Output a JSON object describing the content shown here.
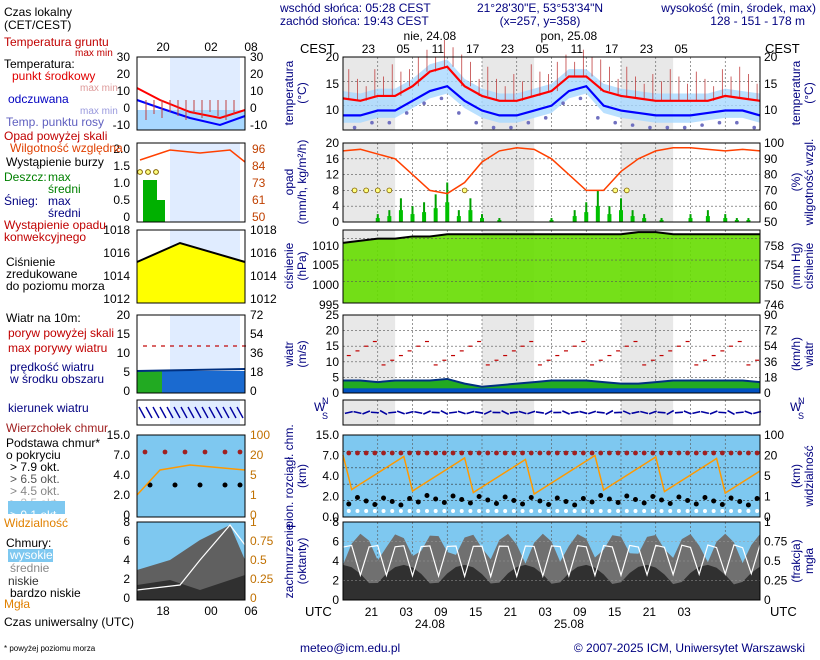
{
  "header": {
    "sunrise": "wschód słońca: 05:28 CEST",
    "sunset": "zachód słońca: 19:43 CEST",
    "coords": "21°28'30\"E, 53°53'34\"N",
    "grid": "(x=257, y=358)",
    "elev_label": "wysokość (min, środek, max)",
    "elev_values": "128 - 151 - 178 m",
    "tz_local": "CEST",
    "days": [
      "nie, 24.08",
      "pon, 25.08"
    ],
    "local_hours": [
      "23",
      "05",
      "11",
      "17",
      "23",
      "05",
      "11",
      "17",
      "23",
      "05"
    ]
  },
  "footer": {
    "utc": "UTC",
    "utc_hours": [
      "21",
      "03",
      "09",
      "15",
      "21",
      "03",
      "09",
      "15",
      "21",
      "03"
    ],
    "dates": [
      "24.08",
      "25.08"
    ],
    "email": "meteo@icm.edu.pl",
    "copyright": "© 2007-2025 ICM, Uniwersytet Warszawski",
    "note": "* powyżej poziomu morza"
  },
  "legend": {
    "local_time": [
      "Czas lokalny",
      "(CET/CEST)"
    ],
    "local_ticks": [
      "20",
      "02",
      "08"
    ],
    "utc_time": "Czas uniwersalny (UTC)",
    "utc_ticks": [
      "18",
      "00",
      "06"
    ],
    "temp": {
      "ground": "Temperatura gruntu",
      "maxmin": "max min",
      "title": "Temperatura:",
      "mid": "punkt środkowy",
      "maxmin2": "max min",
      "felt": "odczuwana",
      "maxmin3": "max min",
      "dew": "Temp. punktu rosy",
      "ticks": [
        "30",
        "20",
        "10",
        "0",
        "-10"
      ]
    },
    "precip": {
      "above": "Opad powyżej skali",
      "rh": "Wilgotność względna",
      "storm": "Wystąpienie burzy",
      "rain": "Deszcz:",
      "rain_max": "max",
      "rain_mid": "średni",
      "snow": "Śnieg:",
      "snow_max": "max",
      "snow_mid": "średni",
      "conv": [
        "Wystąpienie opadu",
        "konwekcyjnego"
      ],
      "ticks_l": [
        "2.0",
        "1.5",
        "1.0",
        "0.5",
        "0"
      ],
      "ticks_r": [
        "96",
        "84",
        "73",
        "61",
        "50"
      ]
    },
    "pressure": {
      "title": [
        "Ciśnienie",
        "zredukowane",
        "do poziomu morza"
      ],
      "ticks_l": [
        "1018",
        "1016",
        "1014",
        "1012"
      ],
      "ticks_r": [
        "1018",
        "1016",
        "1014",
        "1012"
      ]
    },
    "wind": {
      "title": "Wiatr na 10m:",
      "gust_above": "poryw powyżej skali",
      "gust": "max porywy wiatru",
      "speed": [
        "prędkość wiatru",
        "w środku obszaru"
      ],
      "ticks_l": [
        "20",
        "15",
        "10",
        "5",
        "0"
      ],
      "ticks_r": [
        "72",
        "54",
        "36",
        "18",
        "0"
      ]
    },
    "dir": "kierunek wiatru",
    "clouds_base": {
      "top": "Wierzchołek chmur",
      "title": [
        "Podstawa chmur*",
        "o pokryciu"
      ],
      "okt": [
        "> 7.9 okt.",
        "> 6.5 okt.",
        "> 4.5 okt.",
        "> 2.5 okt.",
        "> 0.1 okt."
      ],
      "vis": "Widzialność",
      "ticks_l": [
        "15.0",
        "7.0",
        "4.0",
        "2.0",
        "0"
      ],
      "ticks_r": [
        "100",
        "20",
        "5",
        "1",
        "0"
      ]
    },
    "clouds": {
      "title": "Chmury:",
      "high": "wysokie",
      "mid": "średnie",
      "low": "niskie",
      "vlow": "bardzo niskie",
      "fog": "Mgła",
      "ticks_l": [
        "8",
        "6",
        "4",
        "2",
        "0"
      ],
      "ticks_r": [
        "1",
        "0.75",
        "0.5",
        "0.25",
        "0"
      ]
    }
  },
  "axes": {
    "temp": {
      "left": "temperatura",
      "left_unit": "(°C)",
      "right": "temperatura",
      "right_unit": "(°C)",
      "ticks": [
        "20",
        "15",
        "10"
      ]
    },
    "precip": {
      "left": "opad",
      "left_unit": "(mm/h, kg/m²/h)",
      "right": "wilgotność wzgl.",
      "right_unit": "(%)",
      "ticks_l": [
        "20",
        "16",
        "12",
        "8",
        "4",
        "0"
      ],
      "ticks_r": [
        "100",
        "90",
        "80",
        "70",
        "60",
        "50"
      ]
    },
    "pressure": {
      "left": "ciśnienie",
      "left_unit": "(hPa)",
      "right": "ciśnienie",
      "right_unit": "(mm Hg)",
      "ticks_l": [
        "1010",
        "1005",
        "1000",
        "995"
      ],
      "ticks_r": [
        "758",
        "754",
        "750",
        "746"
      ]
    },
    "wind": {
      "left": "wiatr",
      "left_unit": "(m/s)",
      "right": "wiatr",
      "right_unit": "(km/h)",
      "ticks_l": [
        "25",
        "20",
        "15",
        "10",
        "5",
        "0"
      ],
      "ticks_r": [
        "90",
        "72",
        "54",
        "36",
        "18",
        "0"
      ]
    },
    "dir": {
      "left": [
        "W",
        "N",
        "S",
        "E"
      ]
    },
    "cloud_base": {
      "left": "pion. rozciągł. chm.",
      "left_unit": "(km)",
      "right": "widzialność",
      "right_unit": "(km)",
      "ticks_l": [
        "15.0",
        "7.0",
        "4.0",
        "2.0",
        "0.0"
      ],
      "ticks_r": [
        "100",
        "20",
        "5",
        "1",
        "0"
      ]
    },
    "cloud_cover": {
      "left": "zachmurzenie",
      "left_unit": "(oktanty)",
      "right": "mgła",
      "right_unit": "(frakcja)",
      "ticks_l": [
        "8",
        "6",
        "4",
        "2",
        "0"
      ],
      "ticks_r": [
        "1",
        "0.75",
        "0.5",
        "0.25",
        "0"
      ]
    }
  },
  "colors": {
    "temp_mid": "#ff0000",
    "temp_felt": "#0000ff",
    "dew": "#8080ff",
    "rh": "#ff4000",
    "rain": "#00a000",
    "pressure": "#66dd00",
    "wind": "#0050c0",
    "gust": "#c00000",
    "vis": "#ff9900",
    "night": "#e8e8e8"
  },
  "chart_data": {
    "type": "line",
    "x_unit": "hour (UTC) from 24.08 18:00",
    "x": [
      0,
      3,
      6,
      9,
      12,
      15,
      18,
      21,
      24,
      27,
      30,
      33,
      36,
      39,
      42,
      45,
      48,
      51,
      54,
      57,
      60,
      63,
      66,
      69,
      72
    ],
    "series": [
      {
        "name": "punkt środkowy",
        "values": [
          11.5,
          11,
          12,
          12,
          14,
          17,
          18,
          14,
          12,
          11,
          11,
          12,
          13,
          16,
          16,
          13,
          12,
          11.5,
          11,
          11,
          11,
          11,
          12,
          11.5,
          11
        ]
      },
      {
        "name": "odczuwana",
        "values": [
          8,
          8,
          9,
          9,
          11,
          13,
          14,
          11,
          9,
          8,
          8,
          9,
          10,
          13,
          14,
          10,
          9,
          8.5,
          8,
          8,
          8,
          8.5,
          9,
          9,
          8
        ]
      },
      {
        "name": "Wilgotność względna",
        "values": [
          95,
          96,
          93,
          90,
          80,
          70,
          68,
          75,
          88,
          95,
          97,
          96,
          90,
          80,
          70,
          70,
          82,
          90,
          95,
          97,
          97,
          96,
          95,
          96,
          95
        ]
      },
      {
        "name": "Ciśnienie",
        "values": [
          1009,
          1009.5,
          1010,
          1010,
          1010.5,
          1010.5,
          1011,
          1011,
          1011,
          1011,
          1011,
          1011,
          1011,
          1011,
          1011,
          1011,
          1011,
          1011.5,
          1011.5,
          1011,
          1011,
          1011,
          1011,
          1011,
          1011
        ]
      },
      {
        "name": "prędkość wiatru",
        "values": [
          4,
          4,
          3.5,
          4,
          4,
          4,
          4.5,
          3,
          2,
          2.5,
          3,
          3.5,
          4,
          4,
          4,
          3.5,
          3,
          3,
          3.5,
          4,
          4,
          4,
          4,
          4,
          3.5
        ]
      }
    ],
    "ylim_temp": [
      5,
      20
    ],
    "ylim_rh": [
      50,
      100
    ],
    "ylim_pressure": [
      995,
      1012
    ],
    "ylim_wind": [
      0,
      25
    ]
  }
}
